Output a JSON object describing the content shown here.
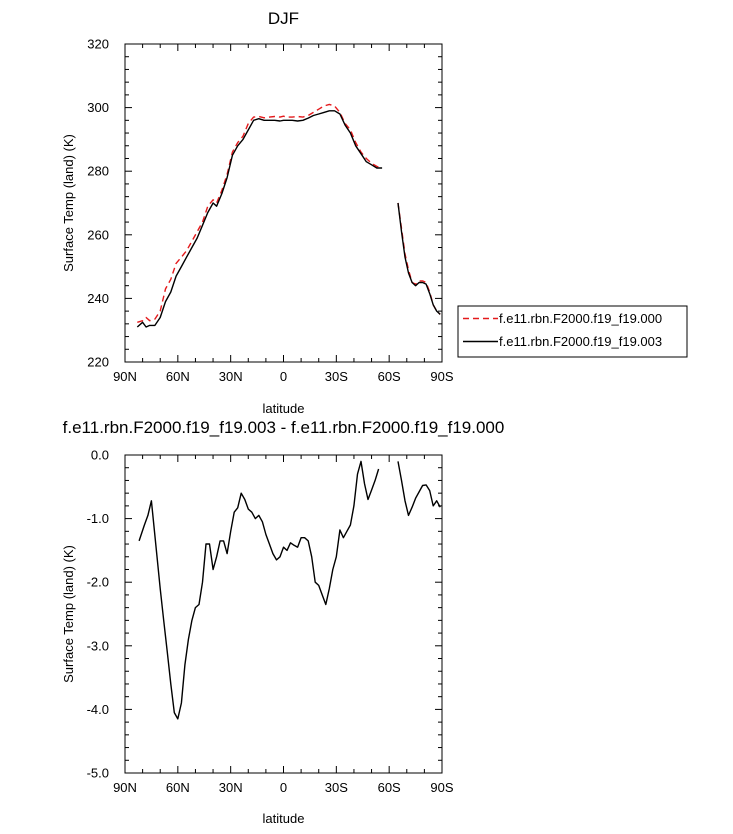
{
  "colors": {
    "case_000": "#e41a1c",
    "case_003": "#000000",
    "axis": "#000000"
  },
  "chart_data": [
    {
      "type": "line",
      "title": "DJF",
      "xlabel": "latitude",
      "ylabel": "Surface Temp (land) (K)",
      "xlim": [
        90,
        -90
      ],
      "ylim": [
        220,
        320
      ],
      "x_ticks": [
        90,
        60,
        30,
        0,
        -30,
        -60,
        -90
      ],
      "x_tick_labels": [
        "90N",
        "60N",
        "30N",
        "0",
        "30S",
        "60S",
        "90S"
      ],
      "y_ticks": [
        220,
        240,
        260,
        280,
        300,
        320
      ],
      "y_tick_labels": [
        "220",
        "240",
        "260",
        "280",
        "300",
        "320"
      ],
      "legend_position": "right",
      "series": [
        {
          "name": "f.e11.rbn.F2000.f19_f19.000",
          "style": "dashed",
          "color": "#e41a1c",
          "segments": [
            {
              "x": [
                83,
                80,
                78,
                76,
                73,
                70,
                67,
                64,
                61,
                58,
                55,
                52,
                49,
                46,
                43,
                40,
                38,
                35,
                32,
                29,
                26,
                23,
                20,
                17,
                14,
                11,
                8,
                5,
                2,
                0,
                -2,
                -5,
                -8,
                -11,
                -14,
                -17,
                -20,
                -23,
                -26,
                -29,
                -32,
                -35,
                -38,
                -41,
                -44,
                -47,
                -50,
                -53,
                -56
              ],
              "y": [
                232.5,
                233,
                234,
                233,
                233.5,
                236,
                243,
                246,
                251,
                253,
                255,
                258,
                261,
                264,
                269,
                271,
                270,
                274,
                279,
                286,
                289,
                291,
                295,
                297,
                297.2,
                296.8,
                297,
                297.2,
                297,
                297.3,
                297,
                297,
                297.2,
                297,
                297.5,
                298.5,
                299.5,
                300.5,
                301,
                300.5,
                298.5,
                295,
                293,
                289,
                286,
                284,
                282.5,
                281.5,
                281
              ]
            },
            {
              "x": [
                -65,
                -67,
                -69,
                -71,
                -73,
                -75,
                -77,
                -79,
                -81,
                -83,
                -85,
                -87,
                -89
              ],
              "y": [
                270,
                262,
                254,
                249,
                245,
                244.5,
                245.5,
                245.5,
                245,
                242,
                238,
                236,
                235
              ]
            }
          ]
        },
        {
          "name": "f.e11.rbn.F2000.f19_f19.003",
          "style": "solid",
          "color": "#000000",
          "segments": [
            {
              "x": [
                83,
                80,
                78,
                76,
                73,
                70,
                67,
                64,
                61,
                58,
                55,
                52,
                49,
                46,
                43,
                40,
                38,
                35,
                32,
                29,
                26,
                23,
                20,
                17,
                14,
                11,
                8,
                5,
                2,
                0,
                -2,
                -5,
                -8,
                -11,
                -14,
                -17,
                -20,
                -23,
                -26,
                -29,
                -32,
                -35,
                -38,
                -41,
                -44,
                -47,
                -50,
                -53,
                -56
              ],
              "y": [
                231,
                232.5,
                231,
                231.5,
                231.5,
                234,
                239,
                242,
                247,
                250,
                253,
                256,
                259,
                263,
                267,
                270,
                269,
                273,
                278,
                285,
                288,
                290,
                293,
                296,
                296.5,
                296,
                296,
                296,
                295.8,
                296,
                296,
                296,
                295.8,
                296,
                296.7,
                297.5,
                298,
                298.5,
                299,
                299,
                298,
                294.5,
                292,
                288,
                285.5,
                283,
                282,
                281,
                281
              ]
            },
            {
              "x": [
                -65,
                -67,
                -69,
                -71,
                -73,
                -75,
                -77,
                -79,
                -81,
                -83,
                -85,
                -87,
                -89
              ],
              "y": [
                270,
                261,
                253,
                248,
                245,
                244,
                245,
                245,
                244.5,
                241.5,
                238,
                236,
                235
              ]
            }
          ]
        }
      ]
    },
    {
      "type": "line",
      "title": "f.e11.rbn.F2000.f19_f19.003 - f.e11.rbn.F2000.f19_f19.000",
      "xlabel": "latitude",
      "ylabel": "Surface Temp (land) (K)",
      "xlim": [
        90,
        -90
      ],
      "ylim": [
        -5.0,
        0.0
      ],
      "x_ticks": [
        90,
        60,
        30,
        0,
        -30,
        -60,
        -90
      ],
      "x_tick_labels": [
        "90N",
        "60N",
        "30N",
        "0",
        "30S",
        "60S",
        "90S"
      ],
      "y_ticks": [
        -5.0,
        -4.0,
        -3.0,
        -2.0,
        -1.0,
        0.0
      ],
      "y_tick_labels": [
        "-5.0",
        "-4.0",
        "-3.0",
        "-2.0",
        "-1.0",
        "0.0"
      ],
      "series": [
        {
          "style": "solid",
          "color": "#000000",
          "segments": [
            {
              "x": [
                82,
                79,
                77,
                75,
                72,
                70,
                68,
                66,
                64,
                62,
                60,
                58,
                56,
                54,
                52,
                50,
                48,
                46,
                44,
                42,
                40,
                38,
                36,
                34,
                32,
                30,
                28,
                26,
                24,
                22,
                20,
                18,
                16,
                14,
                12,
                10,
                8,
                6,
                4,
                2,
                0,
                -2,
                -4,
                -6,
                -8,
                -10,
                -12,
                -14,
                -16,
                -18,
                -20,
                -22,
                -24,
                -26,
                -28,
                -30,
                -32,
                -34,
                -36,
                -38,
                -40,
                -42,
                -44,
                -46,
                -48,
                -50,
                -52,
                -54
              ],
              "y": [
                -1.35,
                -1.1,
                -0.95,
                -0.72,
                -1.55,
                -2.1,
                -2.6,
                -3.1,
                -3.6,
                -4.05,
                -4.15,
                -3.9,
                -3.3,
                -2.9,
                -2.6,
                -2.4,
                -2.35,
                -2.0,
                -1.4,
                -1.4,
                -1.8,
                -1.6,
                -1.35,
                -1.35,
                -1.55,
                -1.2,
                -0.9,
                -0.83,
                -0.6,
                -0.7,
                -0.85,
                -0.9,
                -1.0,
                -0.95,
                -1.05,
                -1.25,
                -1.4,
                -1.55,
                -1.65,
                -1.6,
                -1.45,
                -1.5,
                -1.38,
                -1.42,
                -1.45,
                -1.3,
                -1.3,
                -1.35,
                -1.6,
                -2.0,
                -2.05,
                -2.2,
                -2.35,
                -2.1,
                -1.8,
                -1.6,
                -1.18,
                -1.3,
                -1.2,
                -1.1,
                -0.8,
                -0.3,
                -0.1,
                -0.45,
                -0.7,
                -0.55,
                -0.4,
                -0.22
              ]
            },
            {
              "x": [
                -65,
                -67,
                -69,
                -71,
                -73,
                -75,
                -77,
                -79,
                -81,
                -83,
                -85,
                -87,
                -89
              ],
              "y": [
                -0.1,
                -0.4,
                -0.72,
                -0.95,
                -0.82,
                -0.68,
                -0.58,
                -0.48,
                -0.47,
                -0.56,
                -0.8,
                -0.72,
                -0.82
              ]
            }
          ]
        }
      ]
    }
  ]
}
